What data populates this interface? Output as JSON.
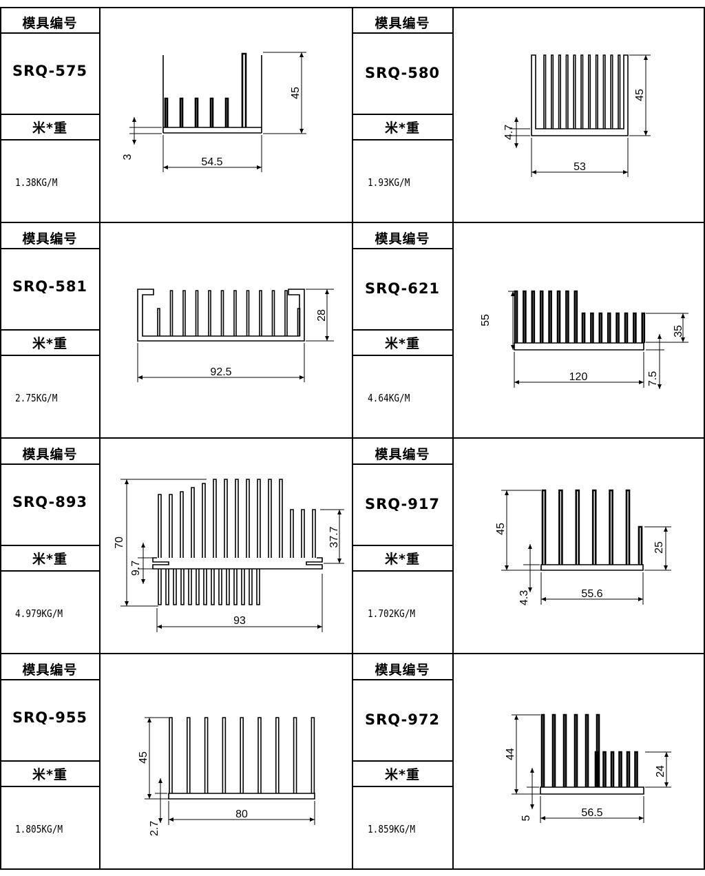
{
  "header_label": "模具编号",
  "weight_label": "米*重",
  "rows": [
    {
      "left": {
        "code": "SRQ-575",
        "weight": "1.38KG/M",
        "dims": [
          "45",
          "3",
          "54.5"
        ]
      },
      "right": {
        "code": "SRQ-580",
        "weight": "1.93KG/M",
        "dims": [
          "45",
          "4.7",
          "53"
        ]
      }
    },
    {
      "left": {
        "code": "SRQ-581",
        "weight": "2.75KG/M",
        "dims": [
          "28",
          "92.5"
        ]
      },
      "right": {
        "code": "SRQ-621",
        "weight": "4.64KG/M",
        "dims": [
          "55",
          "35",
          "120",
          "7.5"
        ]
      }
    },
    {
      "left": {
        "code": "SRQ-893",
        "weight": "4.979KG/M",
        "dims": [
          "70",
          "9.7",
          "37.7",
          "93"
        ]
      },
      "right": {
        "code": "SRQ-917",
        "weight": "1.702KG/M",
        "dims": [
          "45",
          "25",
          "4.3",
          "55.6"
        ]
      }
    },
    {
      "left": {
        "code": "SRQ-955",
        "weight": "1.805KG/M",
        "dims": [
          "45",
          "2.7",
          "80"
        ]
      },
      "right": {
        "code": "SRQ-972",
        "weight": "1.859KG/M",
        "dims": [
          "44",
          "24",
          "5",
          "56.5"
        ]
      }
    }
  ]
}
